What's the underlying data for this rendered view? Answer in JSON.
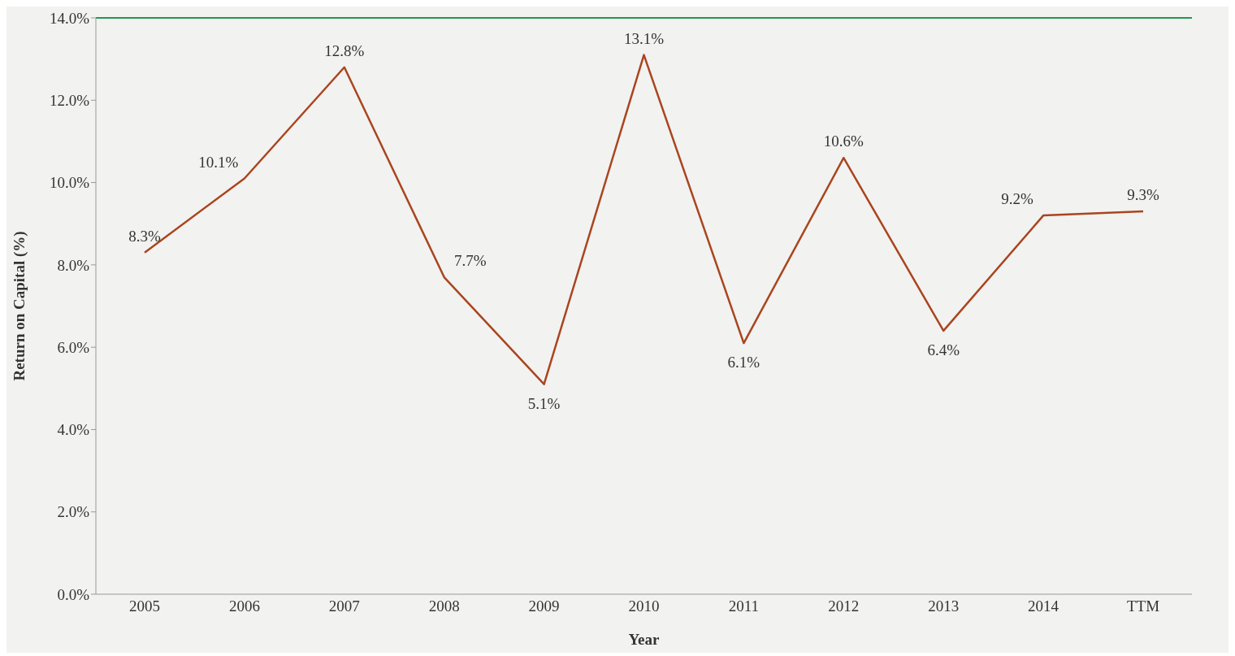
{
  "chart_data": {
    "type": "line",
    "xlabel": "Year",
    "ylabel": "Return on Capital (%)",
    "categories": [
      "2005",
      "2006",
      "2007",
      "2008",
      "2009",
      "2010",
      "2011",
      "2012",
      "2013",
      "2014",
      "TTM"
    ],
    "series": [
      {
        "color": "#a9451f",
        "values": [
          8.3,
          10.1,
          12.8,
          7.7,
          5.1,
          13.1,
          6.1,
          10.6,
          6.4,
          9.2,
          9.3
        ],
        "value_labels": [
          "8.3%",
          "10.1%",
          "12.8%",
          "7.7%",
          "5.1%",
          "13.1%",
          "6.1%",
          "10.6%",
          "6.4%",
          "9.2%",
          "9.3%"
        ]
      }
    ],
    "ylim": [
      0,
      14
    ],
    "yticks": [
      {
        "value": 0,
        "label": "0.0%"
      },
      {
        "value": 2,
        "label": "2.0%"
      },
      {
        "value": 4,
        "label": "4.0%"
      },
      {
        "value": 6,
        "label": "6.0%"
      },
      {
        "value": 8,
        "label": "8.0%"
      },
      {
        "value": 10,
        "label": "10.0%"
      },
      {
        "value": 12,
        "label": "12.0%"
      },
      {
        "value": 14,
        "label": "14.0%"
      }
    ],
    "ref_lines": [
      {
        "axis": "y",
        "value": 14,
        "color": "#1f9a4f"
      }
    ],
    "grid": false,
    "legend": false,
    "marker": "none",
    "line_style": "solid"
  }
}
